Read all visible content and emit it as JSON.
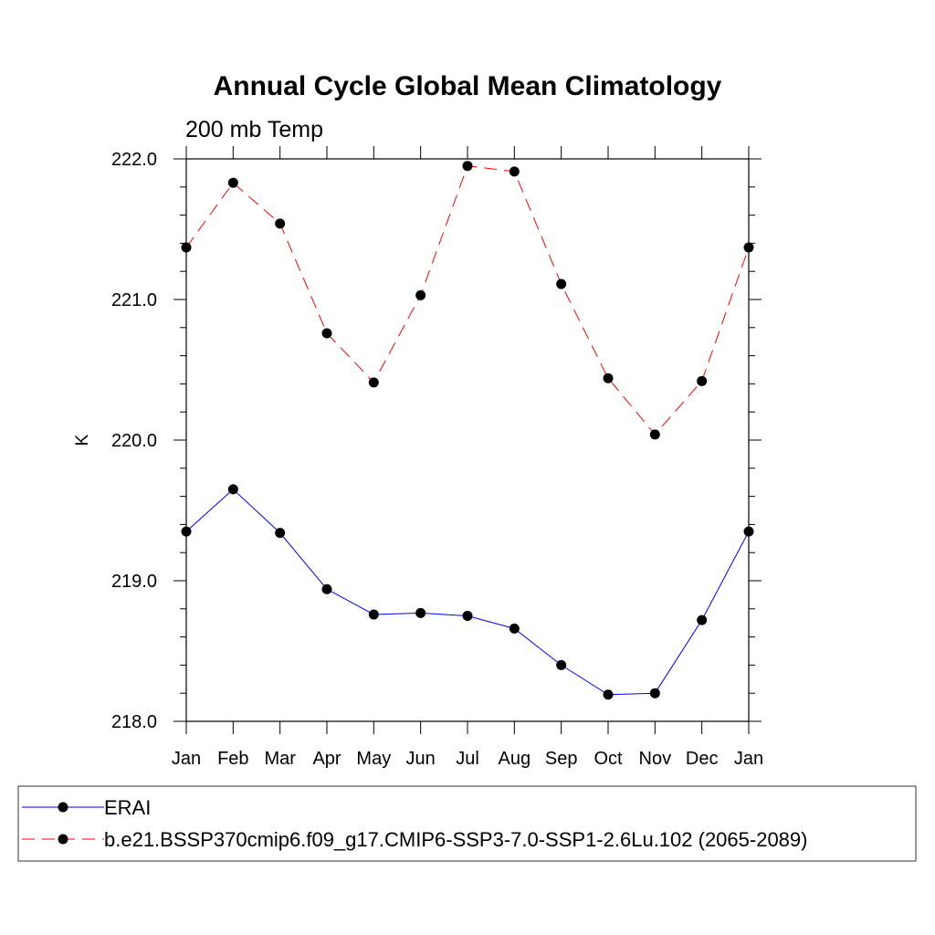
{
  "chart_data": {
    "type": "line",
    "title": "Annual Cycle Global Mean Climatology",
    "subtitle": "200 mb Temp",
    "xlabel": "",
    "ylabel": "K",
    "categories": [
      "Jan",
      "Feb",
      "Mar",
      "Apr",
      "May",
      "Jun",
      "Jul",
      "Aug",
      "Sep",
      "Oct",
      "Nov",
      "Dec",
      "Jan"
    ],
    "ylim": [
      218.0,
      222.0
    ],
    "yticks": [
      218.0,
      219.0,
      220.0,
      221.0,
      222.0
    ],
    "ytick_labels": [
      "218.0",
      "219.0",
      "220.0",
      "221.0",
      "222.0"
    ],
    "grid": false,
    "legend_position": "bottom",
    "series": [
      {
        "name": "ERAI",
        "color": "#0000ff",
        "line_style": "solid",
        "marker": "filled-circle",
        "values": [
          219.35,
          219.65,
          219.34,
          218.94,
          218.76,
          218.77,
          218.75,
          218.66,
          218.4,
          218.19,
          218.2,
          218.72,
          219.35
        ]
      },
      {
        "name": "b.e21.BSSP370cmip6.f09_g17.CMIP6-SSP3-7.0-SSP1-2.6Lu.102 (2065-2089)",
        "color": "#ff0000",
        "line_style": "dashed",
        "marker": "filled-circle",
        "values": [
          221.37,
          221.83,
          221.54,
          220.76,
          220.41,
          221.03,
          221.95,
          221.91,
          221.11,
          220.44,
          220.04,
          220.42,
          221.37
        ]
      }
    ]
  }
}
